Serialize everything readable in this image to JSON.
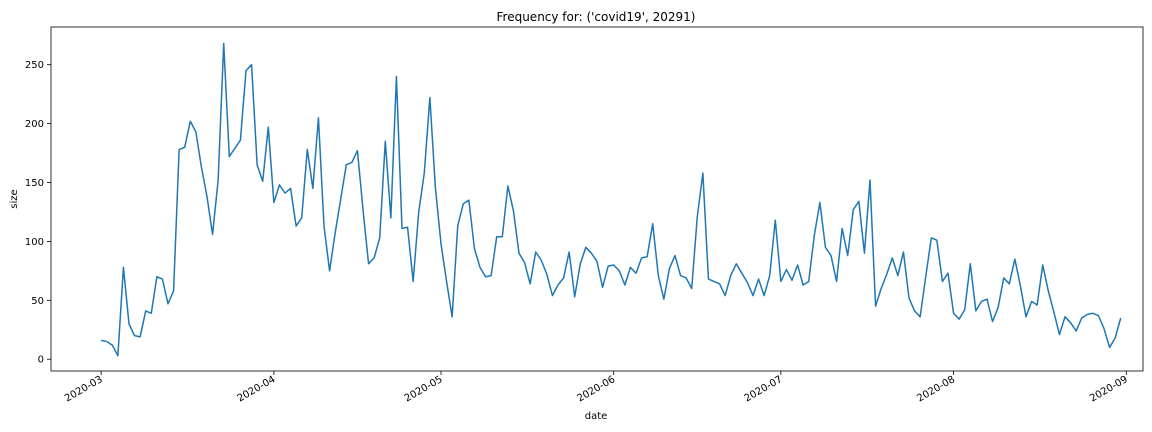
{
  "chart_data": {
    "type": "line",
    "title": "Frequency for: ('covid19', 20291)",
    "xlabel": "date",
    "ylabel": "size",
    "x_tick_labels": [
      "2020-03",
      "2020-04",
      "2020-05",
      "2020-06",
      "2020-07",
      "2020-08",
      "2020-09"
    ],
    "y_ticks": [
      0,
      50,
      100,
      150,
      200,
      250
    ],
    "xlim": [
      "2020-02-21",
      "2020-09-04"
    ],
    "ylim": [
      -10,
      282
    ],
    "grid": false,
    "color": "#1f77b4",
    "series": [
      {
        "start_date": "2020-03-01",
        "values": [
          16,
          15,
          12,
          3,
          78,
          30,
          20,
          19,
          41,
          39,
          70,
          68,
          47,
          58,
          178,
          180,
          202,
          193,
          163,
          138,
          106,
          152,
          268,
          172,
          179,
          186,
          245,
          250,
          165,
          151,
          197,
          133,
          148,
          141,
          145,
          113,
          120,
          178,
          145,
          205,
          113,
          75,
          107,
          136,
          165,
          167,
          177,
          127,
          81,
          86,
          103,
          185,
          120,
          240,
          111,
          112,
          66,
          125,
          158,
          222,
          145,
          98,
          66,
          36,
          113,
          132,
          135,
          94,
          78,
          70,
          71,
          104,
          104,
          147,
          126,
          90,
          82,
          64,
          91,
          84,
          72,
          54,
          63,
          69,
          91,
          53,
          81,
          95,
          90,
          83,
          61,
          79,
          80,
          75,
          63,
          78,
          73,
          86,
          87,
          115,
          71,
          51,
          77,
          88,
          71,
          69,
          60,
          121,
          158,
          68,
          66,
          64,
          54,
          71,
          81,
          73,
          65,
          54,
          68,
          54,
          71,
          118,
          66,
          76,
          67,
          80,
          63,
          66,
          105,
          133,
          95,
          88,
          66,
          111,
          88,
          127,
          134,
          90,
          152,
          45,
          60,
          72,
          86,
          71,
          91,
          52,
          41,
          36,
          70,
          103,
          101,
          66,
          73,
          39,
          34,
          42,
          81,
          41,
          49,
          51,
          32,
          44,
          69,
          64,
          85,
          62,
          36,
          49,
          46,
          80,
          58,
          40,
          21,
          36,
          31,
          24,
          35,
          38,
          39,
          37,
          26,
          10,
          18,
          35
        ]
      }
    ]
  }
}
